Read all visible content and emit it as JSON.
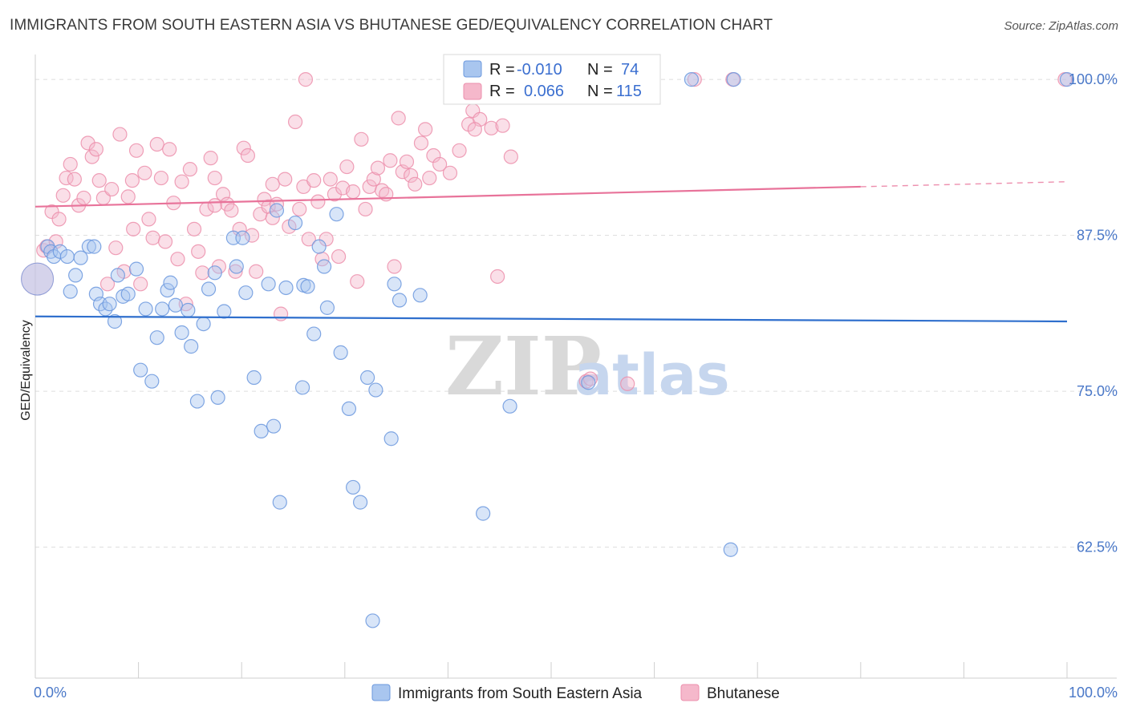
{
  "title": "IMMIGRANTS FROM SOUTH EASTERN ASIA VS BHUTANESE GED/EQUIVALENCY CORRELATION CHART",
  "source": "Source: ZipAtlas.com",
  "watermark": {
    "zip": "ZIP",
    "atlas": "atlas"
  },
  "colors": {
    "blue_fill": "#a9c6ef",
    "blue_stroke": "#6b98de",
    "blue_line": "#2f6fcd",
    "pink_fill": "#f5b8cb",
    "pink_stroke": "#ec8fac",
    "pink_line": "#e8739a",
    "tick_text": "#4a78c8",
    "grid": "#dddddd"
  },
  "legend": {
    "r_label": "R =",
    "n_label": "N =",
    "blue": {
      "r": "-0.010",
      "n": "74"
    },
    "pink": {
      "r": "0.066",
      "n": "115"
    }
  },
  "chart_data": {
    "type": "scatter",
    "title": "IMMIGRANTS FROM SOUTH EASTERN ASIA VS BHUTANESE GED/EQUIVALENCY CORRELATION CHART",
    "xlabel": "",
    "ylabel": "GED/Equivalency",
    "xlim": [
      0,
      100
    ],
    "ylim": [
      52,
      102
    ],
    "x_tick_labels": [
      "0.0%",
      "100.0%"
    ],
    "y_ticks": [
      62.5,
      75.0,
      87.5,
      100.0
    ],
    "y_tick_labels": [
      "62.5%",
      "75.0%",
      "87.5%",
      "100.0%"
    ],
    "grid": true,
    "legend_position": "top-center",
    "series": [
      {
        "name": "Immigrants from South Eastern Asia",
        "color": "blue",
        "trend": {
          "x": [
            0,
            100
          ],
          "y": [
            81.0,
            80.6
          ]
        },
        "points": [
          [
            1.2,
            86.6
          ],
          [
            1.5,
            86.2
          ],
          [
            1.8,
            85.8
          ],
          [
            2.4,
            86.2
          ],
          [
            3.1,
            85.8
          ],
          [
            3.4,
            83.0
          ],
          [
            3.9,
            84.3
          ],
          [
            4.4,
            85.7
          ],
          [
            5.2,
            86.6
          ],
          [
            5.7,
            86.6
          ],
          [
            5.9,
            82.8
          ],
          [
            6.3,
            82.0
          ],
          [
            6.8,
            81.6
          ],
          [
            7.2,
            82.0
          ],
          [
            7.7,
            80.6
          ],
          [
            8.0,
            84.3
          ],
          [
            8.5,
            82.6
          ],
          [
            9.0,
            82.8
          ],
          [
            9.8,
            84.8
          ],
          [
            10.2,
            76.7
          ],
          [
            10.7,
            81.6
          ],
          [
            11.3,
            75.8
          ],
          [
            11.8,
            79.3
          ],
          [
            12.3,
            81.6
          ],
          [
            12.8,
            83.1
          ],
          [
            13.1,
            83.7
          ],
          [
            13.6,
            81.9
          ],
          [
            14.2,
            79.7
          ],
          [
            14.8,
            81.5
          ],
          [
            15.1,
            78.6
          ],
          [
            15.7,
            74.2
          ],
          [
            16.3,
            80.4
          ],
          [
            16.8,
            83.2
          ],
          [
            17.4,
            84.5
          ],
          [
            17.7,
            74.5
          ],
          [
            18.3,
            81.4
          ],
          [
            19.2,
            87.3
          ],
          [
            19.5,
            85.0
          ],
          [
            20.1,
            87.3
          ],
          [
            20.4,
            82.9
          ],
          [
            21.2,
            76.1
          ],
          [
            21.9,
            71.8
          ],
          [
            22.6,
            83.6
          ],
          [
            23.1,
            72.2
          ],
          [
            23.4,
            89.5
          ],
          [
            23.7,
            66.1
          ],
          [
            24.3,
            83.3
          ],
          [
            25.2,
            88.5
          ],
          [
            25.9,
            75.3
          ],
          [
            26.0,
            83.5
          ],
          [
            26.4,
            83.4
          ],
          [
            27.0,
            79.6
          ],
          [
            27.5,
            86.6
          ],
          [
            28.0,
            85.0
          ],
          [
            28.3,
            81.7
          ],
          [
            29.2,
            89.2
          ],
          [
            29.6,
            78.1
          ],
          [
            30.4,
            73.6
          ],
          [
            30.8,
            67.3
          ],
          [
            31.5,
            66.1
          ],
          [
            32.2,
            76.1
          ],
          [
            32.7,
            56.6
          ],
          [
            33.0,
            75.1
          ],
          [
            34.5,
            71.2
          ],
          [
            34.8,
            83.6
          ],
          [
            35.3,
            82.3
          ],
          [
            37.3,
            82.7
          ],
          [
            43.4,
            65.2
          ],
          [
            46.0,
            73.8
          ],
          [
            53.6,
            75.7
          ],
          [
            63.6,
            100.0
          ],
          [
            67.4,
            62.3
          ],
          [
            67.7,
            100.0
          ],
          [
            100.0,
            100.0
          ]
        ],
        "large_point": [
          0.2,
          84.0
        ]
      },
      {
        "name": "Bhutanese",
        "color": "pink",
        "trend": {
          "x": [
            0,
            100
          ],
          "y": [
            89.8,
            91.8
          ],
          "solid_until_x": 80.0
        },
        "points": [
          [
            0.8,
            86.3
          ],
          [
            1.1,
            86.6
          ],
          [
            1.6,
            89.4
          ],
          [
            2.0,
            87.0
          ],
          [
            2.3,
            88.8
          ],
          [
            2.7,
            90.7
          ],
          [
            3.0,
            92.1
          ],
          [
            3.4,
            93.2
          ],
          [
            3.8,
            92.0
          ],
          [
            4.2,
            89.9
          ],
          [
            4.7,
            90.5
          ],
          [
            5.1,
            94.9
          ],
          [
            5.5,
            93.8
          ],
          [
            5.9,
            94.4
          ],
          [
            6.2,
            91.9
          ],
          [
            6.6,
            90.5
          ],
          [
            7.0,
            83.6
          ],
          [
            7.4,
            91.2
          ],
          [
            7.8,
            86.5
          ],
          [
            8.2,
            95.6
          ],
          [
            8.6,
            84.6
          ],
          [
            9.0,
            90.6
          ],
          [
            9.4,
            91.9
          ],
          [
            9.8,
            94.3
          ],
          [
            10.2,
            83.6
          ],
          [
            10.6,
            92.5
          ],
          [
            11.0,
            88.8
          ],
          [
            11.4,
            87.3
          ],
          [
            11.8,
            94.8
          ],
          [
            12.2,
            92.1
          ],
          [
            12.6,
            87.0
          ],
          [
            13.0,
            94.4
          ],
          [
            13.4,
            90.1
          ],
          [
            13.8,
            85.6
          ],
          [
            14.2,
            91.8
          ],
          [
            14.6,
            82.0
          ],
          [
            15.0,
            92.8
          ],
          [
            15.4,
            88.0
          ],
          [
            15.8,
            86.2
          ],
          [
            16.2,
            84.5
          ],
          [
            16.6,
            89.6
          ],
          [
            17.0,
            93.7
          ],
          [
            17.4,
            92.1
          ],
          [
            17.8,
            85.0
          ],
          [
            18.2,
            90.8
          ],
          [
            18.6,
            90.0
          ],
          [
            19.0,
            89.5
          ],
          [
            19.4,
            84.6
          ],
          [
            19.8,
            88.0
          ],
          [
            20.2,
            94.5
          ],
          [
            20.6,
            93.9
          ],
          [
            21.0,
            87.5
          ],
          [
            21.4,
            84.6
          ],
          [
            21.8,
            89.2
          ],
          [
            22.2,
            90.4
          ],
          [
            22.6,
            89.8
          ],
          [
            23.0,
            91.6
          ],
          [
            23.4,
            90.0
          ],
          [
            23.8,
            81.2
          ],
          [
            24.2,
            92.0
          ],
          [
            24.6,
            88.2
          ],
          [
            25.2,
            96.6
          ],
          [
            25.6,
            89.6
          ],
          [
            26.0,
            91.4
          ],
          [
            26.5,
            87.2
          ],
          [
            27.0,
            91.9
          ],
          [
            27.4,
            90.2
          ],
          [
            27.8,
            85.6
          ],
          [
            28.2,
            87.2
          ],
          [
            28.6,
            92.0
          ],
          [
            29.0,
            90.8
          ],
          [
            29.4,
            85.8
          ],
          [
            29.8,
            91.3
          ],
          [
            30.2,
            93.0
          ],
          [
            30.8,
            91.0
          ],
          [
            31.2,
            83.8
          ],
          [
            31.6,
            95.2
          ],
          [
            32.0,
            89.6
          ],
          [
            32.4,
            91.4
          ],
          [
            32.8,
            92.0
          ],
          [
            33.2,
            92.9
          ],
          [
            33.6,
            91.1
          ],
          [
            34.0,
            90.8
          ],
          [
            34.4,
            93.5
          ],
          [
            34.8,
            85.0
          ],
          [
            35.2,
            96.9
          ],
          [
            35.6,
            92.6
          ],
          [
            36.0,
            93.4
          ],
          [
            36.4,
            92.3
          ],
          [
            36.8,
            91.6
          ],
          [
            37.4,
            94.9
          ],
          [
            37.8,
            96.0
          ],
          [
            38.2,
            92.1
          ],
          [
            38.6,
            93.9
          ],
          [
            39.2,
            93.2
          ],
          [
            40.2,
            92.5
          ],
          [
            41.1,
            94.3
          ],
          [
            42.0,
            96.4
          ],
          [
            42.4,
            97.5
          ],
          [
            43.1,
            96.8
          ],
          [
            44.2,
            96.1
          ],
          [
            44.8,
            84.2
          ],
          [
            45.3,
            96.3
          ],
          [
            46.1,
            93.8
          ],
          [
            53.4,
            75.8
          ],
          [
            53.8,
            76.0
          ],
          [
            57.4,
            75.6
          ],
          [
            63.9,
            100.0
          ],
          [
            67.6,
            100.0
          ],
          [
            99.8,
            100.0
          ],
          [
            42.6,
            96.0
          ],
          [
            17.4,
            89.9
          ],
          [
            9.5,
            88.0
          ],
          [
            26.2,
            100.0
          ],
          [
            23.0,
            88.9
          ]
        ],
        "large_point": [
          0.2,
          84.0
        ]
      }
    ]
  },
  "bottom_legend": {
    "blue_label": "Immigrants from South Eastern Asia",
    "pink_label": "Bhutanese"
  }
}
